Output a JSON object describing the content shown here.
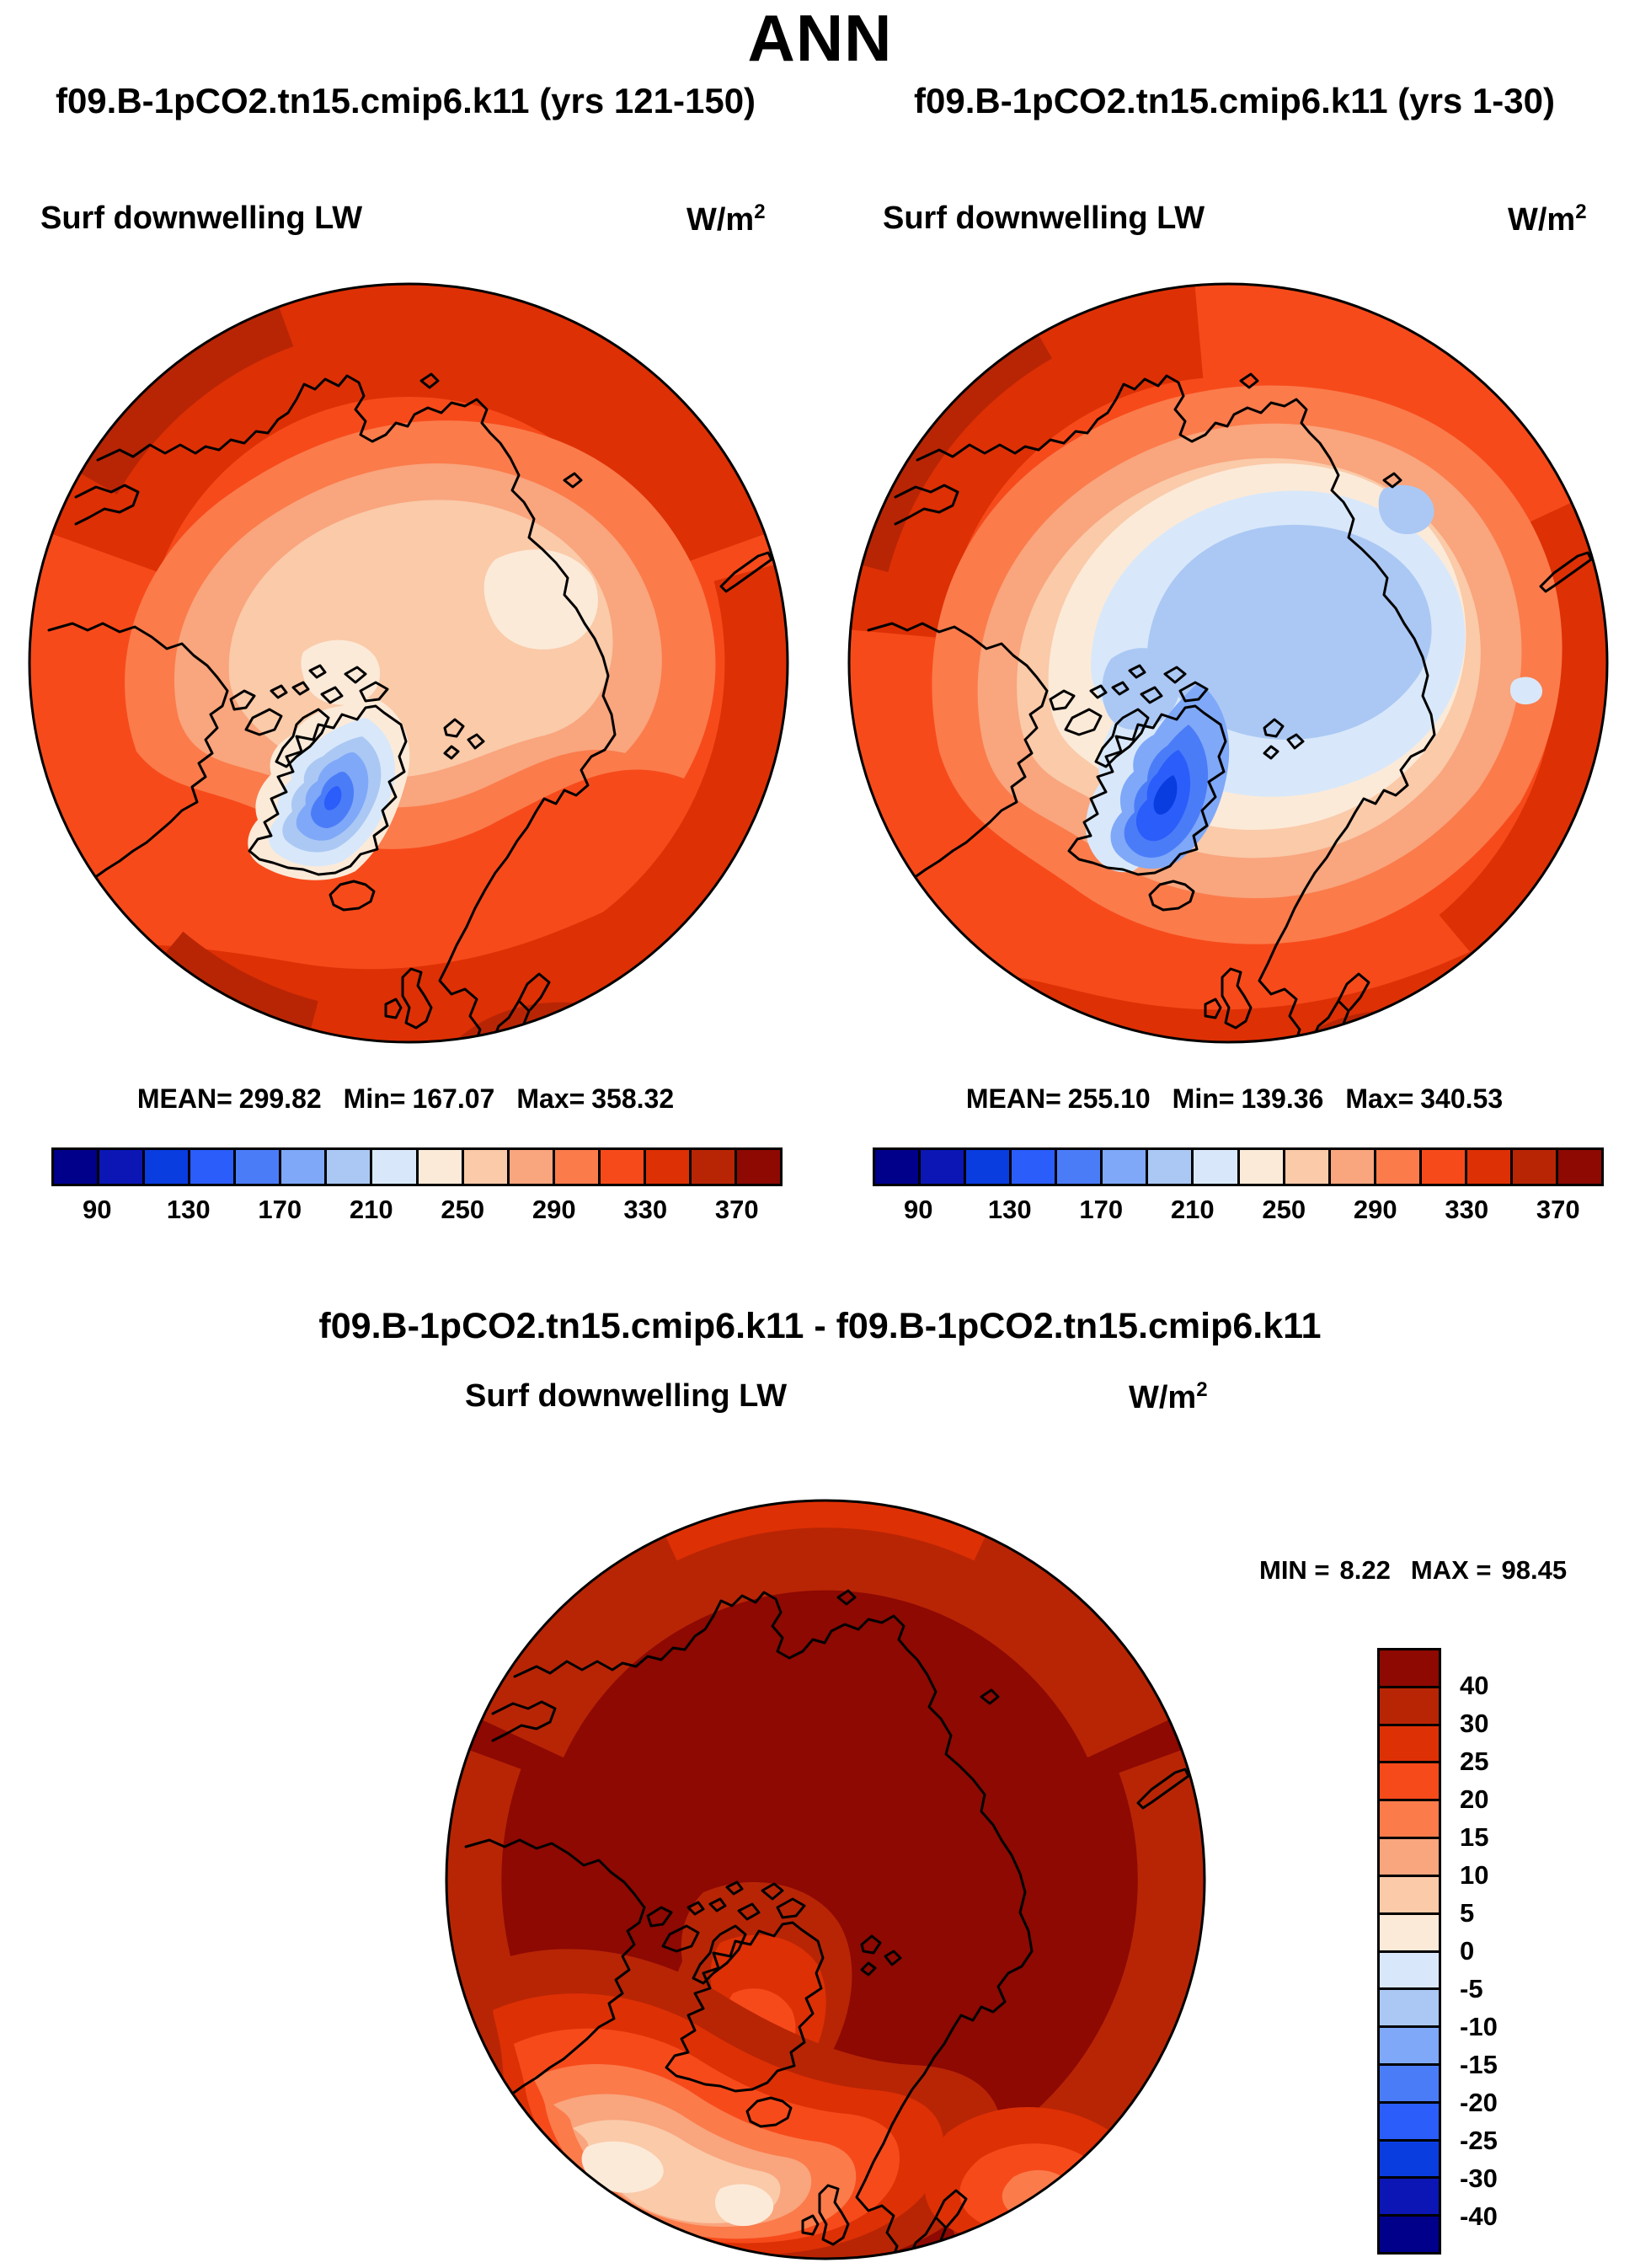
{
  "title": "ANN",
  "panels": [
    {
      "case_title": "f09.B-1pCO2.tn15.cmip6.k11 (yrs 121-150)",
      "var_label": "Surf downwelling LW",
      "units_base": "W/m",
      "units_exp": "2",
      "stats": {
        "mean_label": "MEAN=",
        "mean": "299.82",
        "min_label": "Min=",
        "min": "167.07",
        "max_label": "Max=",
        "max": "358.32"
      }
    },
    {
      "case_title": "f09.B-1pCO2.tn15.cmip6.k11 (yrs 1-30)",
      "var_label": "Surf downwelling LW",
      "units_base": "W/m",
      "units_exp": "2",
      "stats": {
        "mean_label": "MEAN=",
        "mean": "255.10",
        "min_label": "Min=",
        "min": "139.36",
        "max_label": "Max=",
        "max": "340.53"
      }
    }
  ],
  "diff_panel": {
    "case_title": "f09.B-1pCO2.tn15.cmip6.k11 - f09.B-1pCO2.tn15.cmip6.k11",
    "var_label": "Surf downwelling LW",
    "units_base": "W/m",
    "units_exp": "2",
    "min_label": "MIN =",
    "min": "8.22",
    "max_label": "MAX =",
    "max": "98.45"
  },
  "colorbar": {
    "tick_labels": [
      "90",
      "130",
      "170",
      "210",
      "250",
      "290",
      "330",
      "370"
    ]
  },
  "diff_colorbar": {
    "tick_labels": [
      "40",
      "30",
      "25",
      "20",
      "15",
      "10",
      "5",
      "0",
      "-5",
      "-10",
      "-15",
      "-20",
      "-25",
      "-30",
      "-40"
    ]
  },
  "palette": [
    "#00008B",
    "#0B16B4",
    "#0A3DE0",
    "#2A5DFA",
    "#4B7CF8",
    "#7FA8F8",
    "#ABC8F4",
    "#D8E8FA",
    "#FCEAD8",
    "#FACAA9",
    "#F9A57D",
    "#FB7B4B",
    "#F74A1A",
    "#DE3005",
    "#B82505",
    "#8D0902"
  ],
  "chart_data": [
    {
      "type": "heatmap",
      "subtype": "polar_stereographic_contour_map",
      "season": "ANN",
      "title": "f09.B-1pCO2.tn15.cmip6.k11 (yrs 121-150)",
      "variable": "Surf downwelling LW",
      "units": "W/m2",
      "mean": 299.82,
      "min": 167.07,
      "max": 358.32,
      "contour_levels": [
        90,
        110,
        130,
        150,
        170,
        190,
        210,
        230,
        250,
        270,
        290,
        310,
        330,
        350,
        370
      ],
      "colorbar_tick_values": [
        90,
        130,
        170,
        210,
        250,
        290,
        330,
        370
      ],
      "legend_position": "bottom"
    },
    {
      "type": "heatmap",
      "subtype": "polar_stereographic_contour_map",
      "season": "ANN",
      "title": "f09.B-1pCO2.tn15.cmip6.k11 (yrs 1-30)",
      "variable": "Surf downwelling LW",
      "units": "W/m2",
      "mean": 255.1,
      "min": 139.36,
      "max": 340.53,
      "contour_levels": [
        90,
        110,
        130,
        150,
        170,
        190,
        210,
        230,
        250,
        270,
        290,
        310,
        330,
        350,
        370
      ],
      "colorbar_tick_values": [
        90,
        130,
        170,
        210,
        250,
        290,
        330,
        370
      ],
      "legend_position": "bottom"
    },
    {
      "type": "heatmap",
      "subtype": "polar_stereographic_contour_map_difference",
      "season": "ANN",
      "title": "f09.B-1pCO2.tn15.cmip6.k11 - f09.B-1pCO2.tn15.cmip6.k11",
      "variable": "Surf downwelling LW",
      "units": "W/m2",
      "min": 8.22,
      "max": 98.45,
      "contour_levels": [
        -40,
        -30,
        -25,
        -20,
        -15,
        -10,
        -5,
        0,
        5,
        10,
        15,
        20,
        25,
        30,
        40
      ],
      "colorbar_tick_values": [
        40,
        30,
        25,
        20,
        15,
        10,
        5,
        0,
        -5,
        -10,
        -15,
        -20,
        -25,
        -30,
        -40
      ],
      "legend_position": "right"
    }
  ]
}
